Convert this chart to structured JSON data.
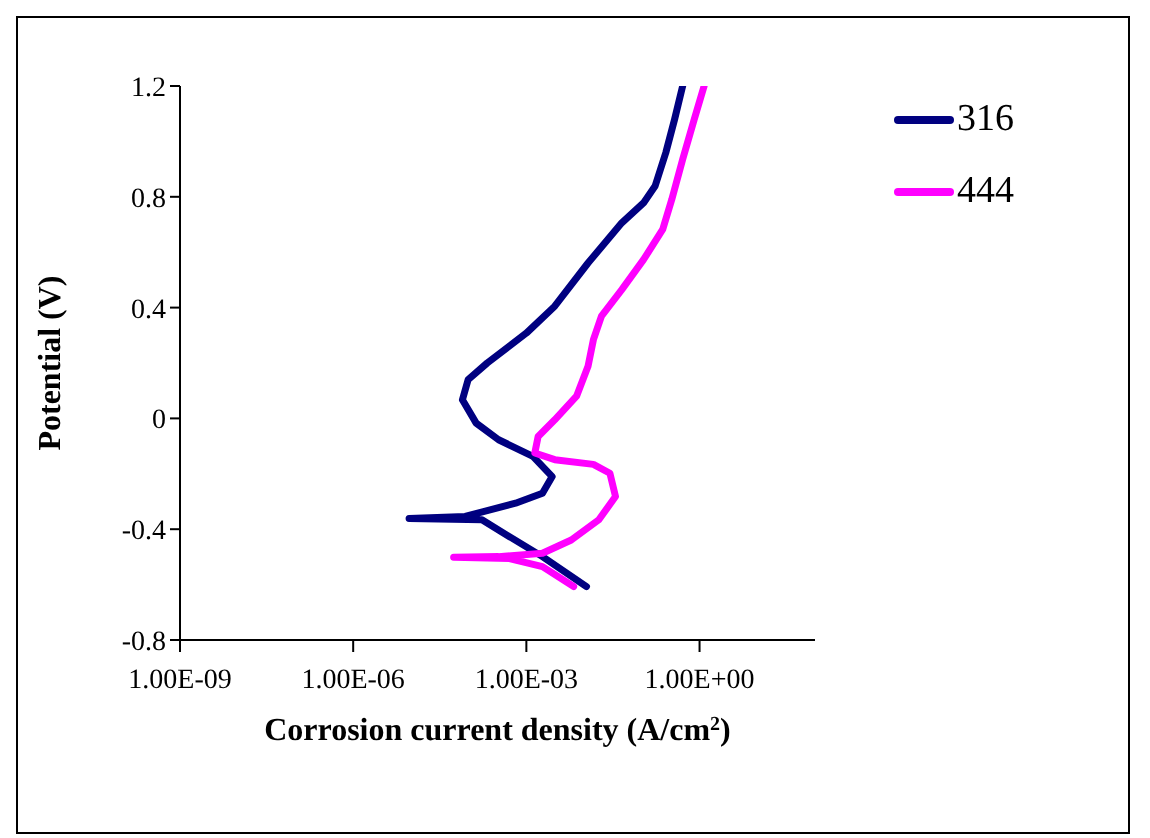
{
  "chart_data": {
    "type": "line",
    "xlabel": "Corrosion current density (A/cm$^{2}$)",
    "ylabel": "Potential (V)",
    "log": "x",
    "xlim": [
      1e-09,
      100
    ],
    "xticks": [
      {
        "value": 1e-09,
        "label": "1.00E-09"
      },
      {
        "value": 1e-06,
        "label": "1.00E-06"
      },
      {
        "value": 0.001,
        "label": "1.00E-03"
      },
      {
        "value": 1,
        "label": "1.00E+00"
      }
    ],
    "ylim": [
      -0.8,
      1.2
    ],
    "yticks": [
      -0.8,
      -0.4,
      0,
      0.4,
      0.8,
      1.2
    ],
    "grid": false,
    "legend": "top right",
    "marker": "none",
    "line_style": "solid",
    "series": [
      {
        "name": "316",
        "color": "#000080",
        "x": [
          0.011,
          0.0019,
          0.00051,
          0.00017,
          9.3e-06,
          8.7e-05,
          0.00065,
          0.0019,
          0.0028,
          0.0013,
          0.00033,
          0.000135,
          7.8e-05,
          9.8e-05,
          0.00021,
          0.001,
          0.0031,
          0.0117,
          0.045,
          0.107,
          0.17,
          0.26,
          0.37,
          0.51
        ],
        "values": [
          -0.607,
          -0.499,
          -0.427,
          -0.366,
          -0.361,
          -0.354,
          -0.306,
          -0.27,
          -0.21,
          -0.137,
          -0.077,
          -0.017,
          0.067,
          0.14,
          0.2,
          0.308,
          0.405,
          0.561,
          0.706,
          0.778,
          0.839,
          0.959,
          1.08,
          1.2
        ]
      },
      {
        "name": "444",
        "color": "#ff00ff",
        "x": [
          0.0066,
          0.0019,
          0.00051,
          5.5e-05,
          0.00033,
          0.0019,
          0.006,
          0.018,
          0.035,
          0.028,
          0.0145,
          0.0031,
          0.0014,
          0.0016,
          0.0031,
          0.0074,
          0.0117,
          0.0145,
          0.02,
          0.045,
          0.107,
          0.23,
          0.33,
          0.51,
          0.81,
          1.2
        ],
        "values": [
          -0.607,
          -0.535,
          -0.506,
          -0.501,
          -0.499,
          -0.487,
          -0.439,
          -0.366,
          -0.282,
          -0.198,
          -0.166,
          -0.149,
          -0.125,
          -0.065,
          -0.005,
          0.08,
          0.188,
          0.284,
          0.369,
          0.465,
          0.573,
          0.682,
          0.79,
          0.935,
          1.08,
          1.2
        ]
      }
    ]
  }
}
